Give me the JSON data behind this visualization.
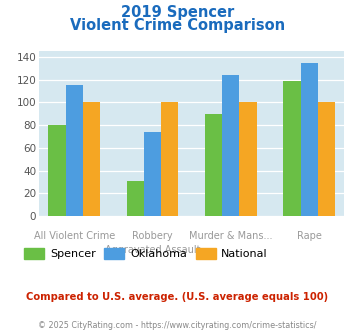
{
  "title_line1": "2019 Spencer",
  "title_line2": "Violent Crime Comparison",
  "series": {
    "Spencer": [
      80,
      31,
      90,
      119
    ],
    "Oklahoma": [
      115,
      74,
      124,
      135
    ],
    "National": [
      100,
      100,
      100,
      100
    ]
  },
  "colors": {
    "Spencer": "#6abf45",
    "Oklahoma": "#4d9de0",
    "National": "#f5a623"
  },
  "top_labels": [
    "",
    "Robbery",
    "Murder & Mans...",
    ""
  ],
  "bottom_labels": [
    "All Violent Crime",
    "Aggravated Assault",
    "",
    "Rape"
  ],
  "ylim": [
    0,
    145
  ],
  "yticks": [
    0,
    20,
    40,
    60,
    80,
    100,
    120,
    140
  ],
  "title_color": "#1a6bbd",
  "bg_color": "#d6e8f0",
  "label_color": "#999999",
  "footnote": "Compared to U.S. average. (U.S. average equals 100)",
  "footnote_color": "#cc2200",
  "copyright": "© 2025 CityRating.com - https://www.cityrating.com/crime-statistics/",
  "copyright_color": "#888888"
}
